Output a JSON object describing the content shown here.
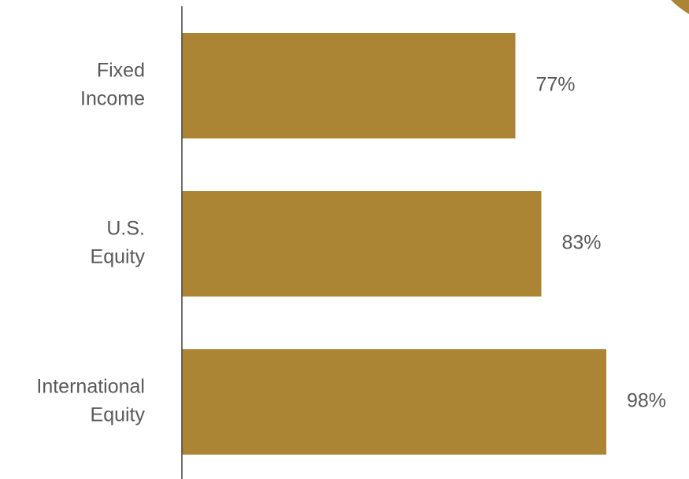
{
  "colors": {
    "bar": "#AB8434",
    "axis": "#404040",
    "text": "#595959",
    "corner_accent": "#AB8434"
  },
  "chart_data": {
    "type": "bar",
    "orientation": "horizontal",
    "categories": [
      [
        "Fixed",
        "Income"
      ],
      [
        "U.S.",
        "Equity"
      ],
      [
        "International",
        "Equity"
      ]
    ],
    "values": [
      77,
      83,
      98
    ],
    "data_labels": [
      "77%",
      "83%",
      "98%"
    ],
    "unit": "%",
    "xlim": [
      0,
      100
    ],
    "grid": false,
    "legend": "none",
    "title": "",
    "xlabel": "",
    "ylabel": ""
  }
}
